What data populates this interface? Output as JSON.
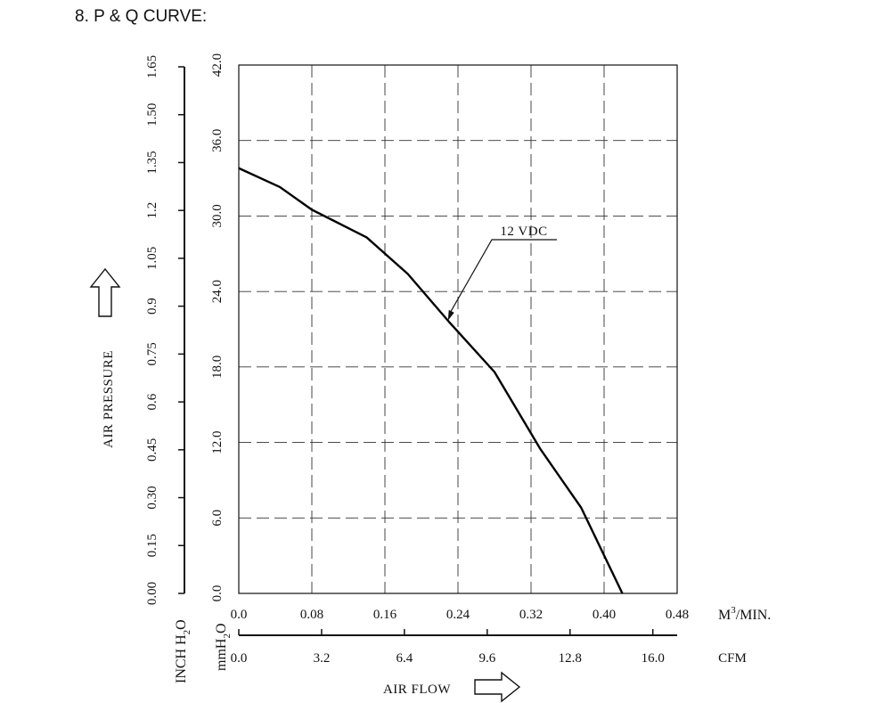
{
  "page_heading": "8. P & Q CURVE:",
  "chart_data": {
    "type": "line",
    "title": "",
    "ylabel": "AIR PRESSURE",
    "xlabel": "AIR FLOW",
    "x_unit_primary": "M³/MIN.",
    "x_unit_primary_base": "M",
    "x_unit_primary_sup": "3",
    "x_unit_primary_rest": "/MIN.",
    "x_unit_secondary": "CFM",
    "y_unit_primary": "mmH₂O",
    "y_unit_primary_base": "mmH",
    "y_unit_primary_sub": "2",
    "y_unit_primary_rest": "O",
    "y_unit_secondary": "INCH H₂O",
    "y_unit_secondary_base": "INCH H",
    "y_unit_secondary_sub": "2",
    "y_unit_secondary_rest": "O",
    "xlim": [
      0,
      0.48
    ],
    "ylim": [
      0,
      42
    ],
    "grid": true,
    "grid_style": "dashed",
    "x_ticks_primary": [
      "0.0",
      "0.08",
      "0.16",
      "0.24",
      "0.32",
      "0.40",
      "0.48"
    ],
    "x_ticks_secondary": [
      "0.0",
      "3.2",
      "6.4",
      "9.6",
      "12.8",
      "16.0"
    ],
    "y_ticks_primary": [
      "0.0",
      "6.0",
      "12.0",
      "18.0",
      "24.0",
      "30.0",
      "36.0",
      "42.0"
    ],
    "y_ticks_secondary": [
      "0.00",
      "0.15",
      "0.30",
      "0.45",
      "0.6",
      "0.75",
      "0.9",
      "1.05",
      "1.2",
      "1.35",
      "1.50",
      "1.65"
    ],
    "series": [
      {
        "name": "12 VDC",
        "x": [
          0.0,
          0.045,
          0.08,
          0.14,
          0.185,
          0.23,
          0.28,
          0.33,
          0.375,
          0.42
        ],
        "y": [
          33.8,
          32.3,
          30.5,
          28.3,
          25.4,
          21.6,
          17.6,
          11.5,
          6.8,
          0.0
        ]
      }
    ],
    "annotations": [
      {
        "text": "12 VDC",
        "points_to_x": 0.229
      }
    ],
    "axis_arrows": [
      "up-arrow-icon",
      "right-arrow-icon"
    ]
  }
}
